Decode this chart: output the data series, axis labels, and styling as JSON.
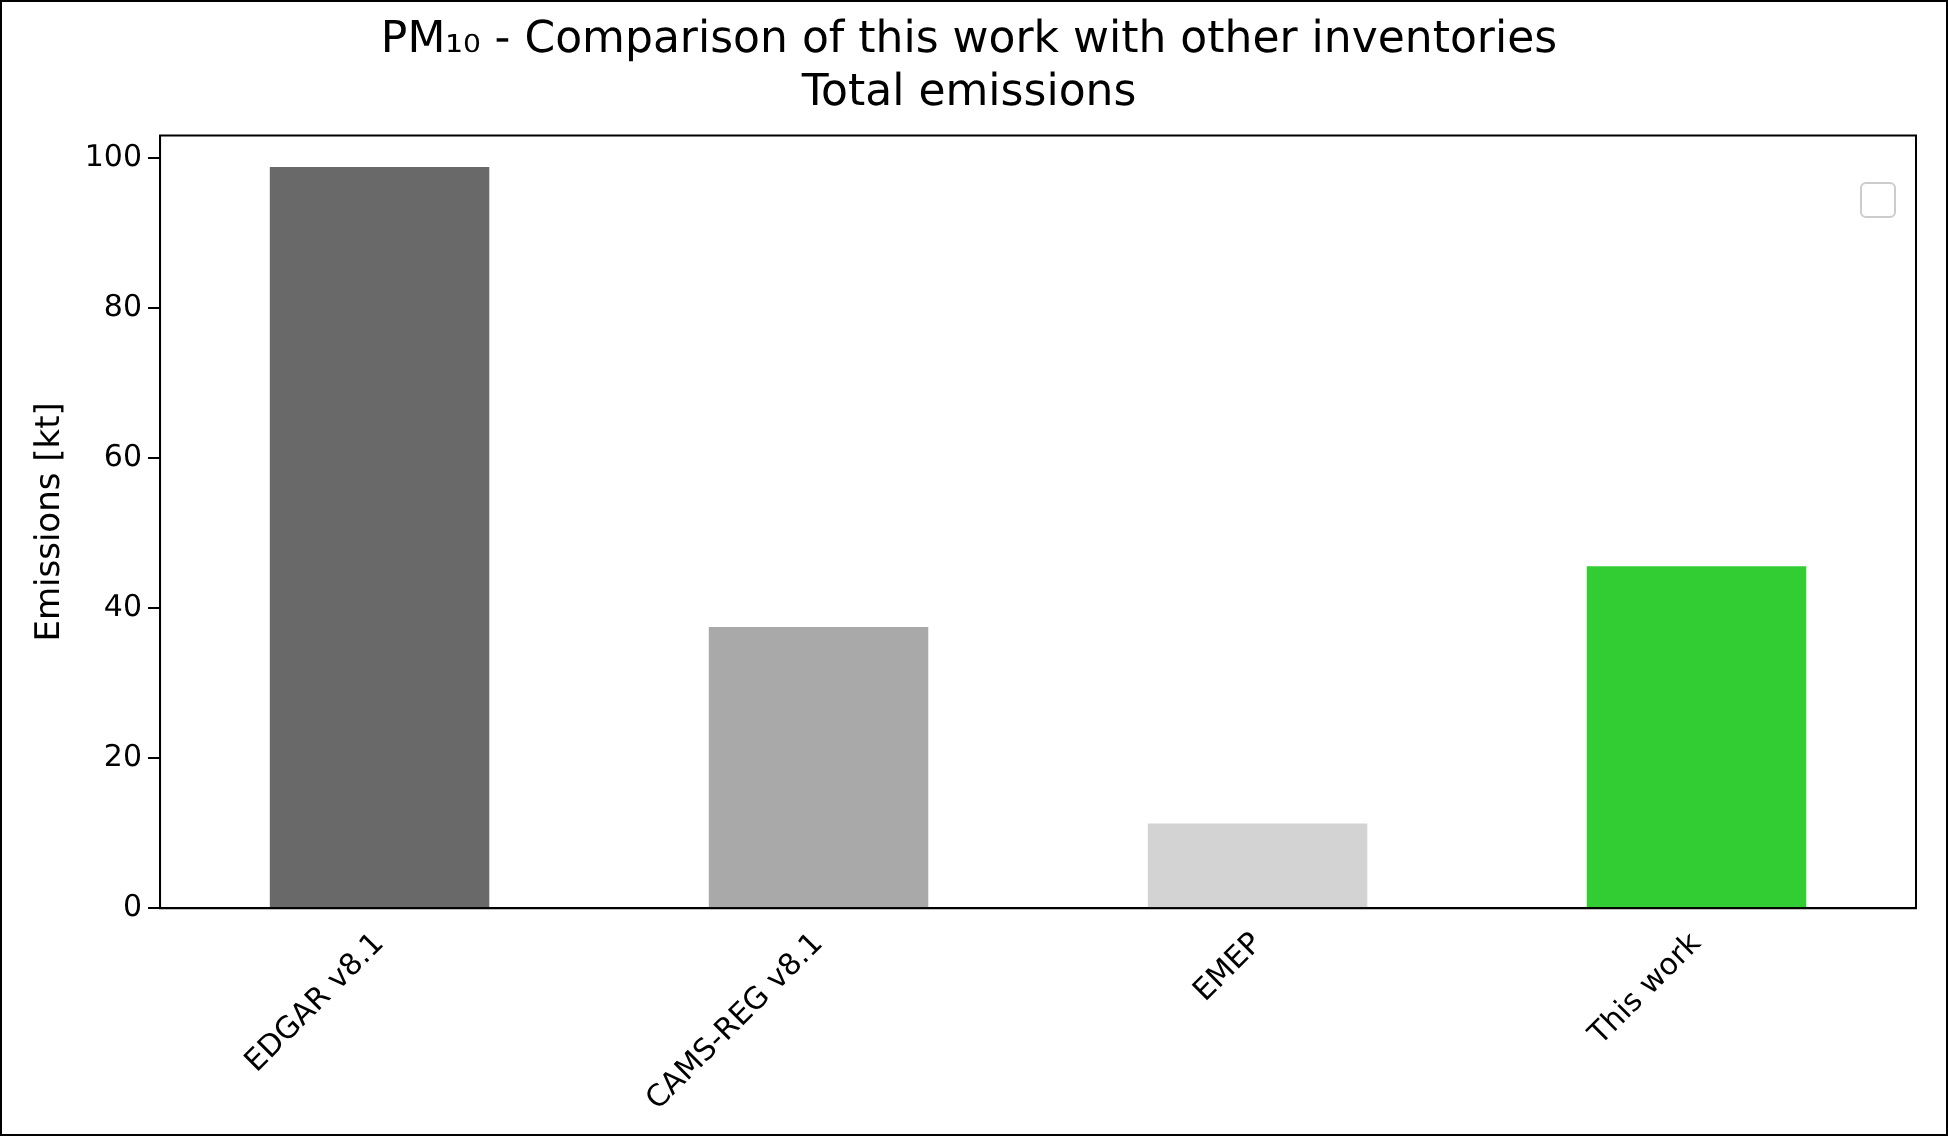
{
  "chart_data": {
    "type": "bar",
    "title": "PM₁₀ - Comparison of this work with other inventories",
    "subtitle": "Total emissions",
    "ylabel": "Emissions [kt]",
    "categories": [
      "EDGAR v8.1",
      "CAMS-REG v8.1",
      "EMEP",
      "This work"
    ],
    "values": [
      98.8,
      37.5,
      11.3,
      45.6
    ],
    "colors": [
      "#696969",
      "#a9a9a9",
      "#d3d3d3",
      "#32cd32"
    ],
    "ylim": [
      0,
      103
    ],
    "yticks": [
      0,
      20,
      40,
      60,
      80,
      100
    ],
    "grid": false
  }
}
